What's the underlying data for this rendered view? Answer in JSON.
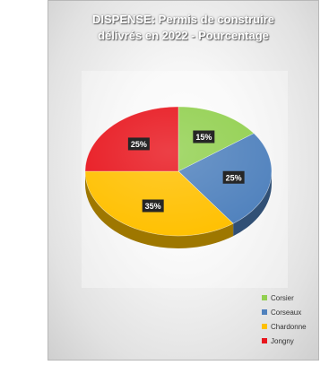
{
  "chart_data": {
    "type": "pie",
    "title_lines": [
      "DISPENSE: Permis de construire",
      "délivrés en 2022 - Pourcentage"
    ],
    "categories": [
      "Corsier",
      "Corseaux",
      "Chardonne",
      "Jongny"
    ],
    "values": [
      15,
      25,
      35,
      25
    ],
    "data_labels": [
      "15%",
      "25%",
      "35%",
      "25%"
    ],
    "colors": [
      "#92d050",
      "#4f81bd",
      "#ffc000",
      "#e8161e"
    ],
    "legend_position": "bottom-right",
    "style": "3d"
  }
}
